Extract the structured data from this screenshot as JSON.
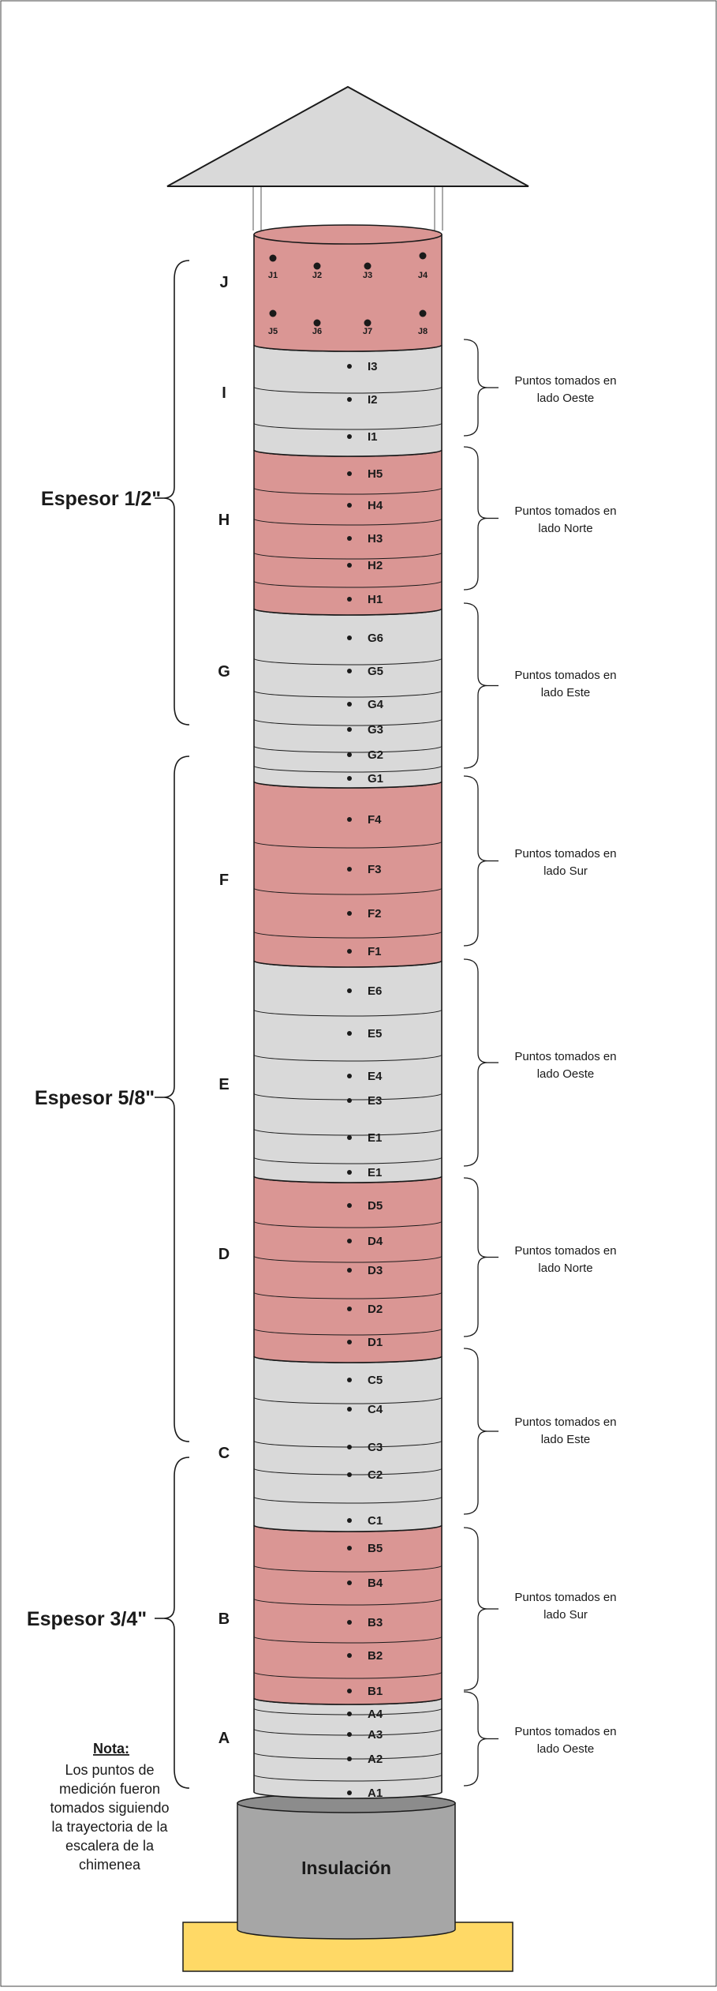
{
  "sections": [
    {
      "id": "A",
      "letter": "A",
      "fill": "#d9d9d9",
      "side": "Puntos tomados en lado Oeste",
      "points": [
        "A4",
        "A3",
        "A2",
        "A1"
      ]
    },
    {
      "id": "B",
      "letter": "B",
      "fill": "#da9694",
      "side": "Puntos tomados en lado Sur",
      "points": [
        "B5",
        "B4",
        "B3",
        "B2",
        "B1"
      ]
    },
    {
      "id": "C",
      "letter": "C",
      "fill": "#d9d9d9",
      "side": "Puntos tomados en lado Este",
      "points": [
        "C5",
        "C4",
        "C3",
        "C2",
        "C1"
      ]
    },
    {
      "id": "D",
      "letter": "D",
      "fill": "#da9694",
      "side": "Puntos tomados en lado Norte",
      "points": [
        "D5",
        "D4",
        "D3",
        "D2",
        "D1"
      ]
    },
    {
      "id": "E",
      "letter": "E",
      "fill": "#d9d9d9",
      "side": "Puntos tomados en lado Oeste",
      "points": [
        "E6",
        "E5",
        "E4",
        "E3",
        "E1",
        "E1"
      ]
    },
    {
      "id": "F",
      "letter": "F",
      "fill": "#da9694",
      "side": "Puntos tomados en lado Sur",
      "points": [
        "F4",
        "F3",
        "F2",
        "F1"
      ]
    },
    {
      "id": "G",
      "letter": "G",
      "fill": "#d9d9d9",
      "side": "Puntos tomados en lado Este",
      "points": [
        "G6",
        "G5",
        "G4",
        "G3",
        "G2",
        "G1"
      ]
    },
    {
      "id": "H",
      "letter": "H",
      "fill": "#da9694",
      "side": "Puntos tomados en lado Norte",
      "points": [
        "H5",
        "H4",
        "H3",
        "H2",
        "H1"
      ]
    },
    {
      "id": "I",
      "letter": "I",
      "fill": "#d9d9d9",
      "side": "Puntos tomados en lado Oeste",
      "points": [
        "I3",
        "I2",
        "I1"
      ]
    },
    {
      "id": "J",
      "letter": "J",
      "fill": "#da9694",
      "points": [
        "J1",
        "J2",
        "J3",
        "J4",
        "J5",
        "J6",
        "J7",
        "J8"
      ]
    }
  ],
  "thickness": [
    {
      "label": "Espesor 1/2\""
    },
    {
      "label": "Espesor 5/8\""
    },
    {
      "label": "Espesor 3/4\""
    }
  ],
  "note": {
    "title": "Nota:",
    "lines": [
      "Los puntos de",
      "medición fueron",
      "tomados siguiendo",
      "la trayectoria de la",
      "escalera de la",
      "chimenea"
    ]
  },
  "insulation": {
    "label": "Insulación",
    "fill": "#a6a6a6"
  },
  "base": {
    "fill": "#ffd966"
  },
  "roof": {
    "fill": "#d9d9d9"
  },
  "colors": {
    "line": "#1a1a1a",
    "gray": "#d9d9d9",
    "pink": "#da9694"
  }
}
